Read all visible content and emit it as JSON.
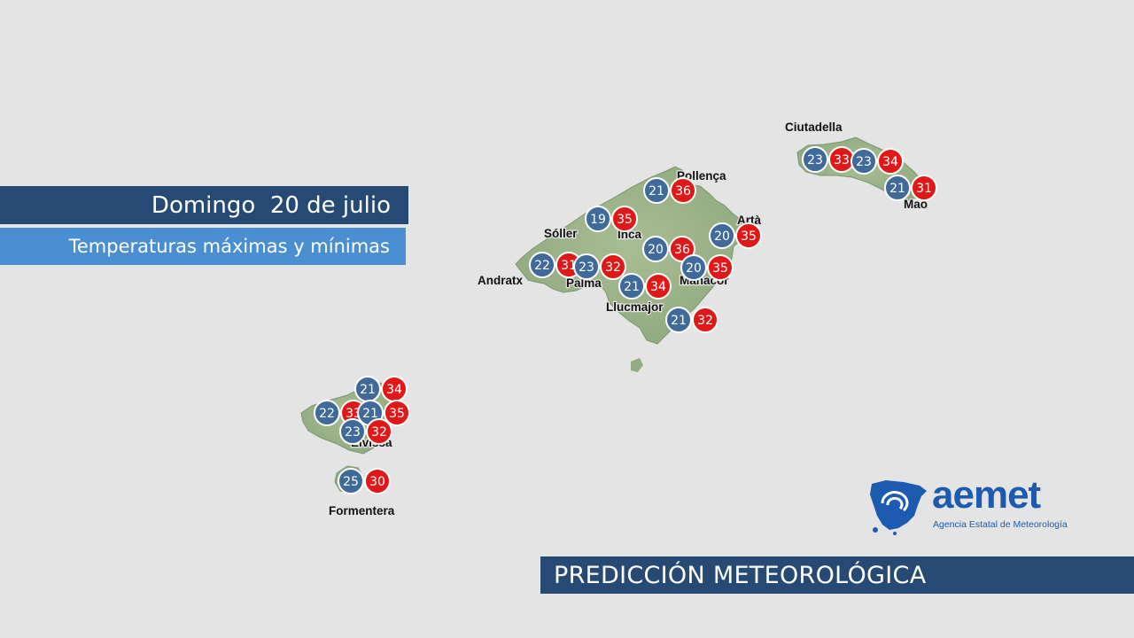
{
  "header": {
    "date": "Domingo  20 de julio",
    "subtitle": "Temperaturas máximas y mínimas"
  },
  "footer": {
    "label": "PREDICCIÓN METEOROLÓGICA"
  },
  "logo": {
    "word": "aemet",
    "subtitle": "Agencia Estatal de Meteorología"
  },
  "colors": {
    "min": "#3f6a9a",
    "max": "#e01818",
    "land": "#9bb38a",
    "sea": "#e4e4e4"
  },
  "places": [
    "Ciutadella",
    "Pollença",
    "Artà",
    "Mao",
    "Sóller",
    "Inca",
    "Andratx",
    "Palma",
    "Manacor",
    "Llucmajor",
    "Eivissa",
    "Formentera"
  ],
  "stations": [
    {
      "min": "23",
      "max": "33"
    },
    {
      "min": "23",
      "max": "34"
    },
    {
      "min": "21",
      "max": "31"
    },
    {
      "min": "21",
      "max": "36"
    },
    {
      "min": "19",
      "max": "35"
    },
    {
      "min": "20",
      "max": "36"
    },
    {
      "min": "20",
      "max": "35"
    },
    {
      "min": "22",
      "max": "31"
    },
    {
      "min": "23",
      "max": "32"
    },
    {
      "min": "20",
      "max": "35"
    },
    {
      "min": "21",
      "max": "34"
    },
    {
      "min": "21",
      "max": "32"
    },
    {
      "min": "21",
      "max": "34"
    },
    {
      "min": "22",
      "max": "33"
    },
    {
      "min": "21",
      "max": "35"
    },
    {
      "min": "23",
      "max": "32"
    },
    {
      "min": "25",
      "max": "30"
    }
  ]
}
